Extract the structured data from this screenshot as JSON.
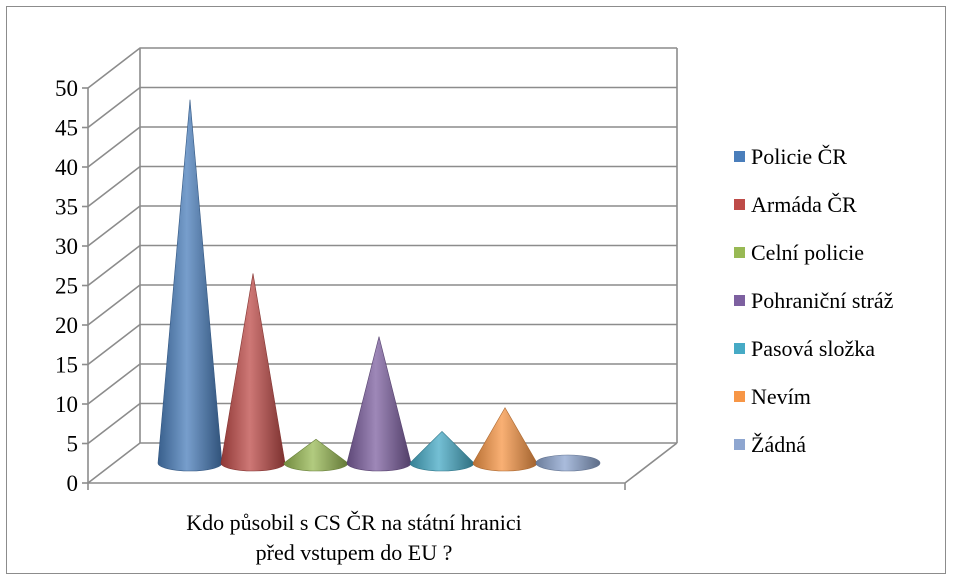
{
  "chart_data": {
    "type": "bar",
    "style": "3d-cone",
    "xlabel_lines": [
      "Kdo působil s CS ČR na státní hranici",
      "před vstupem do EU ?"
    ],
    "categories": [
      "Kdo působil s CS ČR na státní hranici před vstupem do EU ?"
    ],
    "ylim": [
      0,
      50
    ],
    "y_ticks": [
      "0",
      "5",
      "10",
      "15",
      "20",
      "25",
      "30",
      "35",
      "40",
      "45",
      "50"
    ],
    "grid": true,
    "legend_position": "right",
    "series": [
      {
        "name": "Policie ČR",
        "values": [
          46
        ],
        "color": "#4A7EBB"
      },
      {
        "name": "Armáda ČR",
        "values": [
          24
        ],
        "color": "#BE4B48"
      },
      {
        "name": "Celní policie",
        "values": [
          3
        ],
        "color": "#98B954"
      },
      {
        "name": "Pohraniční stráž",
        "values": [
          16
        ],
        "color": "#7D60A0"
      },
      {
        "name": "Pasová složka",
        "values": [
          4
        ],
        "color": "#46AAC5"
      },
      {
        "name": "Nevím",
        "values": [
          7
        ],
        "color": "#F79646"
      },
      {
        "name": "Žádná",
        "values": [
          0
        ],
        "color": "#8EA6D0"
      }
    ]
  }
}
